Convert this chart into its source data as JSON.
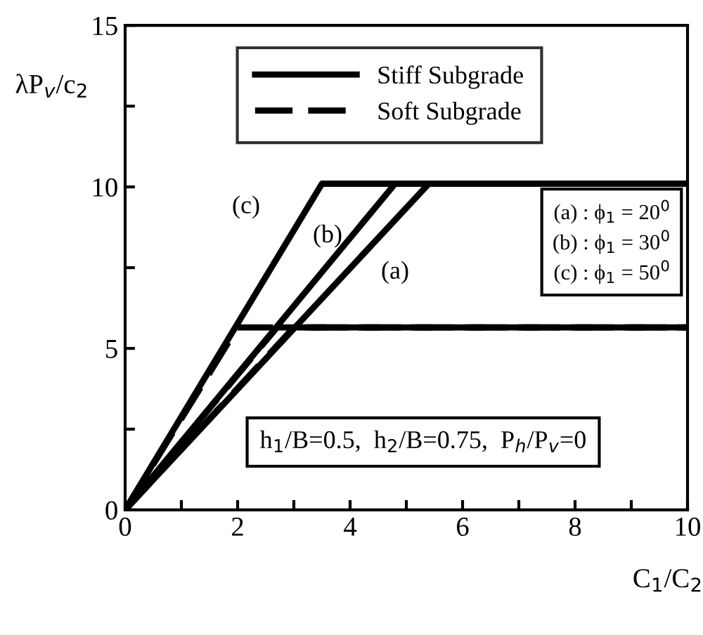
{
  "chart_data": {
    "type": "line",
    "xlabel": "C$_{1}$/C$_{2}$",
    "ylabel": "λP$_{v}$/c$_{2}$",
    "series": [
      {
        "name": "Stiff Subgrade",
        "color": "#000000",
        "line_style": "solid",
        "x": [
          0,
          5.4,
          10
        ],
        "values": [
          0,
          10.1,
          10.1
        ]
      },
      {
        "color": "#000000",
        "line_style": "solid",
        "x": [
          0,
          4.8,
          10
        ],
        "values": [
          0,
          10.1,
          10.1
        ]
      },
      {
        "color": "#000000",
        "line_style": "solid",
        "x": [
          0,
          3.5,
          10
        ],
        "values": [
          0,
          10.1,
          10.1
        ]
      },
      {
        "name": "Soft Subgrade",
        "color": "#000000",
        "line_style": "dashed",
        "x": [
          0,
          3.0,
          10
        ],
        "values": [
          0,
          5.65,
          5.65
        ]
      },
      {
        "color": "#000000",
        "line_style": "dashed",
        "x": [
          0,
          2.7,
          10
        ],
        "values": [
          0,
          5.65,
          5.65
        ]
      },
      {
        "color": "#000000",
        "line_style": "dashed",
        "x": [
          0,
          2.0,
          10
        ],
        "values": [
          0,
          5.65,
          5.65
        ]
      }
    ],
    "xlim": [
      0,
      10
    ],
    "ylim": [
      0,
      15
    ],
    "xticks": [
      0,
      {
        "value": 1,
        "label": null
      },
      2,
      {
        "value": 3,
        "label": null
      },
      4,
      {
        "value": 5,
        "label": null
      },
      6,
      {
        "value": 7,
        "label": null
      },
      8,
      {
        "value": 9,
        "label": null
      },
      10
    ],
    "yticks": [
      0,
      {
        "value": 2.5,
        "label": null
      },
      5,
      {
        "value": 7.5,
        "label": null
      },
      10,
      {
        "value": 12.5,
        "label": null
      },
      15
    ],
    "grid": false,
    "legend": "top",
    "marker": "none",
    "annotations": [
      "(c)",
      "(b)",
      "(a)",
      "(a) : ϕ$_{1}$ = 20$^{0}$\n(b) : ϕ$_{1}$ = 30$^{0}$\n(c) : ϕ$_{1}$ = 50$^{0}$",
      "h$_{1}$/B=0.5,  h$_{2}$/B=0.75,  P$_{h}$/P$_{v}$=0"
    ]
  }
}
